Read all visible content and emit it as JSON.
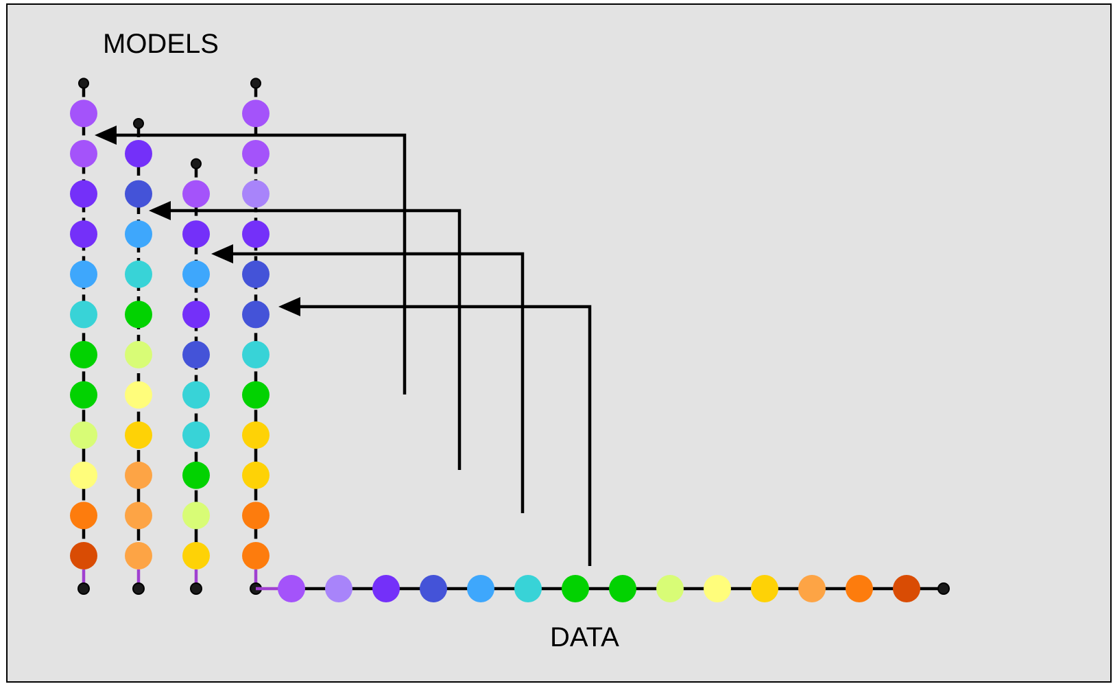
{
  "labels": {
    "models": "MODELS",
    "data": "DATA"
  },
  "colors": {
    "background": "#e3e3e3",
    "frame": "#000000",
    "line": "#000000",
    "tail": "#a040d0"
  },
  "palette": {
    "dark_orange": "#d94c04",
    "orange": "#fd7c0d",
    "light_orange": "#fda445",
    "gold": "#fed206",
    "yellow": "#fffd7b",
    "lime": "#d8fc76",
    "green": "#02d201",
    "cyan": "#38d3d7",
    "sky": "#3ea7fc",
    "blue": "#4453d8",
    "violet": "#7430f9",
    "lavender": "#a884fa",
    "purple": "#a453fa"
  },
  "data_sequence": [
    "purple",
    "lavender",
    "violet",
    "blue",
    "sky",
    "cyan",
    "green",
    "green",
    "lime",
    "yellow",
    "gold",
    "light_orange",
    "orange",
    "dark_orange"
  ],
  "model_columns": [
    {
      "id": "model-1",
      "nodes": [
        "dark_orange",
        "orange",
        "yellow",
        "lime",
        "green",
        "green",
        "cyan",
        "sky",
        "violet",
        "violet",
        "purple",
        "purple"
      ]
    },
    {
      "id": "model-2",
      "nodes": [
        "light_orange",
        "light_orange",
        "light_orange",
        "gold",
        "yellow",
        "lime",
        "green",
        "cyan",
        "sky",
        "blue",
        "violet"
      ]
    },
    {
      "id": "model-3",
      "nodes": [
        "gold",
        "lime",
        "green",
        "cyan",
        "cyan",
        "blue",
        "violet",
        "sky",
        "violet",
        "purple"
      ]
    },
    {
      "id": "model-4",
      "nodes": [
        "orange",
        "orange",
        "gold",
        "gold",
        "green",
        "cyan",
        "blue",
        "blue",
        "violet",
        "lavender",
        "purple",
        "purple"
      ]
    }
  ],
  "arrows": [
    {
      "id": "arrow-to-model-1",
      "target_column": 0
    },
    {
      "id": "arrow-to-model-2",
      "target_column": 1
    },
    {
      "id": "arrow-to-model-3",
      "target_column": 2
    },
    {
      "id": "arrow-to-model-4",
      "target_column": 3
    }
  ]
}
